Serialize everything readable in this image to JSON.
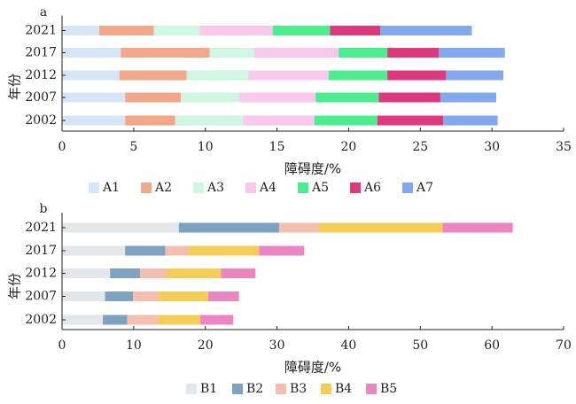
{
  "chart_data": [
    {
      "panel_label": "a",
      "type": "bar",
      "orientation": "horizontal",
      "stacked": true,
      "categories": [
        "2021",
        "2017",
        "2012",
        "2007",
        "2002"
      ],
      "xlabel": "障碍度/%",
      "ylabel": "年份",
      "xlim": [
        0,
        35
      ],
      "xticks": [
        0,
        5,
        10,
        15,
        20,
        25,
        30,
        35
      ],
      "legend_position": "bottom",
      "grid": false,
      "series": [
        {
          "name": "A1",
          "color": "#d6e6f8",
          "values": [
            2.6,
            4.1,
            4.0,
            4.4,
            4.4
          ]
        },
        {
          "name": "A2",
          "color": "#f2a78a",
          "values": [
            3.8,
            6.2,
            4.7,
            3.9,
            3.5
          ]
        },
        {
          "name": "A3",
          "color": "#cff6e1",
          "values": [
            3.2,
            3.1,
            4.3,
            4.1,
            4.7
          ]
        },
        {
          "name": "A4",
          "color": "#f8c9ec",
          "values": [
            5.1,
            5.9,
            5.6,
            5.3,
            5.0
          ]
        },
        {
          "name": "A5",
          "color": "#4ded8f",
          "values": [
            4.0,
            3.4,
            4.1,
            4.4,
            4.4
          ]
        },
        {
          "name": "A6",
          "color": "#dd3a7d",
          "values": [
            3.5,
            3.6,
            4.1,
            4.3,
            4.6
          ]
        },
        {
          "name": "A7",
          "color": "#84a8ee",
          "values": [
            6.4,
            4.6,
            4.0,
            3.9,
            3.8
          ]
        }
      ]
    },
    {
      "panel_label": "b",
      "type": "bar",
      "orientation": "horizontal",
      "stacked": true,
      "categories": [
        "2021",
        "2017",
        "2012",
        "2007",
        "2002"
      ],
      "xlabel": "障碍度/%",
      "ylabel": "年份",
      "xlim": [
        0,
        70
      ],
      "xticks": [
        0,
        10,
        20,
        30,
        40,
        50,
        60,
        70
      ],
      "legend_position": "bottom",
      "grid": false,
      "series": [
        {
          "name": "B1",
          "color": "#e4e7ea",
          "values": [
            16.3,
            8.8,
            6.7,
            6.0,
            5.7
          ]
        },
        {
          "name": "B2",
          "color": "#7ea3c2",
          "values": [
            14.0,
            5.6,
            4.2,
            3.9,
            3.4
          ]
        },
        {
          "name": "B3",
          "color": "#f4bfae",
          "values": [
            5.5,
            3.3,
            3.7,
            3.6,
            4.3
          ]
        },
        {
          "name": "B4",
          "color": "#f3cd58",
          "values": [
            17.3,
            9.8,
            7.6,
            6.9,
            5.9
          ]
        },
        {
          "name": "B5",
          "color": "#ec86c3",
          "values": [
            9.8,
            6.3,
            4.8,
            4.3,
            4.6
          ]
        }
      ]
    }
  ]
}
